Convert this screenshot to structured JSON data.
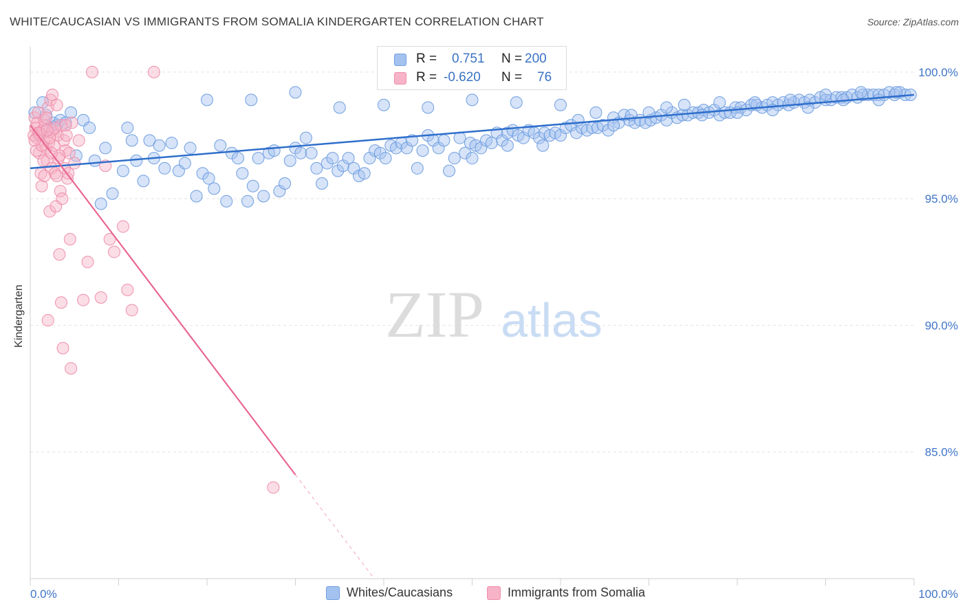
{
  "title": "WHITE/CAUCASIAN VS IMMIGRANTS FROM SOMALIA KINDERGARTEN CORRELATION CHART",
  "source": "Source: ZipAtlas.com",
  "watermark": {
    "zip": "ZIP",
    "atlas": "atlas"
  },
  "legend": {
    "r_label": "R =",
    "n_label": "N =",
    "series": [
      {
        "r": "0.751",
        "n": "200",
        "color": "#a4c2f0"
      },
      {
        "r": "-0.620",
        "n": "76",
        "color": "#f7b3c7"
      }
    ]
  },
  "bottom_legend": [
    "Whites/Caucasians",
    "Immigrants from Somalia"
  ],
  "colors": {
    "blue_fill": "#a4c2f0",
    "blue_stroke": "#6f9ee0",
    "blue_line": "#2e6ecb",
    "pink_fill": "#f7b3c7",
    "pink_stroke": "#ee8fab",
    "pink_line": "#e8668f",
    "axis_text": "#3f74c7",
    "grid": "#e2e2e2"
  },
  "chart_data": {
    "type": "scatter",
    "xlabel": "",
    "ylabel": "Kindergarten",
    "xlim": [
      0,
      100
    ],
    "ylim": [
      80,
      101
    ],
    "x_tick_labels": [
      "0.0%",
      "100.0%"
    ],
    "y_ticks": [
      85,
      90,
      95,
      100
    ],
    "y_tick_labels": [
      "85.0%",
      "90.0%",
      "95.0%",
      "100.0%"
    ],
    "grid": true,
    "series": [
      {
        "name": "Whites/Caucasians",
        "trend": {
          "x": [
            0,
            100
          ],
          "y": [
            96.2,
            99.1
          ]
        },
        "points": [
          [
            0.5,
            98.4
          ],
          [
            1.0,
            97.5
          ],
          [
            1.4,
            98.8
          ],
          [
            1.8,
            98.3
          ],
          [
            2.2,
            97.8
          ],
          [
            2.6,
            98.0
          ],
          [
            3.0,
            97.9
          ],
          [
            3.4,
            98.1
          ],
          [
            4.0,
            98.0
          ],
          [
            4.6,
            98.4
          ],
          [
            5.2,
            96.7
          ],
          [
            6.0,
            98.1
          ],
          [
            6.7,
            97.8
          ],
          [
            7.3,
            96.5
          ],
          [
            8.0,
            94.8
          ],
          [
            8.5,
            97.0
          ],
          [
            9.3,
            95.2
          ],
          [
            10.5,
            96.1
          ],
          [
            11.0,
            97.8
          ],
          [
            11.5,
            97.3
          ],
          [
            12.0,
            96.5
          ],
          [
            12.8,
            95.7
          ],
          [
            13.5,
            97.3
          ],
          [
            14.0,
            96.6
          ],
          [
            14.6,
            97.1
          ],
          [
            15.2,
            96.2
          ],
          [
            16.0,
            97.2
          ],
          [
            16.8,
            96.1
          ],
          [
            17.5,
            96.4
          ],
          [
            18.1,
            97.0
          ],
          [
            18.8,
            95.1
          ],
          [
            19.5,
            96.0
          ],
          [
            20.2,
            95.8
          ],
          [
            20.8,
            95.4
          ],
          [
            21.5,
            97.1
          ],
          [
            22.2,
            94.9
          ],
          [
            22.8,
            96.8
          ],
          [
            23.5,
            96.6
          ],
          [
            24.0,
            96.0
          ],
          [
            24.6,
            94.9
          ],
          [
            25.2,
            95.5
          ],
          [
            25.8,
            96.6
          ],
          [
            26.4,
            95.1
          ],
          [
            27.0,
            96.8
          ],
          [
            27.6,
            96.9
          ],
          [
            28.2,
            95.3
          ],
          [
            28.8,
            95.6
          ],
          [
            29.4,
            96.5
          ],
          [
            30.0,
            97.0
          ],
          [
            30.6,
            96.8
          ],
          [
            31.2,
            97.4
          ],
          [
            31.8,
            96.8
          ],
          [
            32.4,
            96.2
          ],
          [
            33.0,
            95.6
          ],
          [
            33.6,
            96.4
          ],
          [
            34.2,
            96.6
          ],
          [
            34.8,
            96.1
          ],
          [
            35.4,
            96.3
          ],
          [
            36.0,
            96.6
          ],
          [
            36.6,
            96.2
          ],
          [
            37.2,
            95.9
          ],
          [
            37.8,
            96.0
          ],
          [
            38.4,
            96.6
          ],
          [
            39.0,
            96.9
          ],
          [
            39.6,
            96.8
          ],
          [
            40.2,
            96.6
          ],
          [
            40.8,
            97.1
          ],
          [
            41.4,
            97.0
          ],
          [
            42.0,
            97.2
          ],
          [
            42.6,
            97.0
          ],
          [
            43.2,
            97.3
          ],
          [
            43.8,
            96.2
          ],
          [
            44.4,
            96.9
          ],
          [
            45.0,
            97.5
          ],
          [
            45.6,
            97.3
          ],
          [
            46.2,
            97.0
          ],
          [
            46.8,
            97.3
          ],
          [
            47.4,
            96.1
          ],
          [
            48.0,
            96.6
          ],
          [
            48.6,
            97.4
          ],
          [
            49.2,
            96.8
          ],
          [
            49.8,
            97.2
          ],
          [
            50.4,
            97.1
          ],
          [
            51.0,
            97.0
          ],
          [
            51.6,
            97.3
          ],
          [
            52.2,
            97.2
          ],
          [
            52.8,
            97.6
          ],
          [
            53.4,
            97.3
          ],
          [
            54.0,
            97.6
          ],
          [
            54.6,
            97.7
          ],
          [
            55.2,
            97.5
          ],
          [
            55.8,
            97.4
          ],
          [
            56.4,
            97.7
          ],
          [
            57.0,
            97.6
          ],
          [
            57.6,
            97.4
          ],
          [
            58.2,
            97.6
          ],
          [
            58.8,
            97.5
          ],
          [
            59.4,
            97.6
          ],
          [
            60.0,
            97.5
          ],
          [
            60.6,
            97.8
          ],
          [
            61.2,
            97.9
          ],
          [
            61.8,
            97.6
          ],
          [
            62.4,
            97.8
          ],
          [
            63.0,
            97.7
          ],
          [
            63.6,
            97.8
          ],
          [
            64.2,
            97.8
          ],
          [
            64.8,
            97.9
          ],
          [
            65.4,
            97.7
          ],
          [
            66.0,
            98.2
          ],
          [
            66.6,
            98.0
          ],
          [
            67.2,
            98.3
          ],
          [
            67.8,
            98.1
          ],
          [
            68.4,
            98.0
          ],
          [
            69.0,
            98.1
          ],
          [
            69.6,
            98.0
          ],
          [
            70.2,
            98.1
          ],
          [
            70.8,
            98.2
          ],
          [
            71.4,
            98.3
          ],
          [
            72.0,
            98.1
          ],
          [
            72.6,
            98.4
          ],
          [
            73.2,
            98.2
          ],
          [
            73.8,
            98.3
          ],
          [
            74.4,
            98.3
          ],
          [
            75.0,
            98.4
          ],
          [
            75.6,
            98.4
          ],
          [
            76.2,
            98.5
          ],
          [
            76.8,
            98.4
          ],
          [
            77.4,
            98.5
          ],
          [
            78.0,
            98.3
          ],
          [
            78.6,
            98.4
          ],
          [
            79.2,
            98.4
          ],
          [
            79.8,
            98.6
          ],
          [
            80.4,
            98.6
          ],
          [
            81.0,
            98.5
          ],
          [
            81.6,
            98.7
          ],
          [
            82.2,
            98.7
          ],
          [
            82.8,
            98.6
          ],
          [
            83.4,
            98.7
          ],
          [
            84.0,
            98.8
          ],
          [
            84.6,
            98.7
          ],
          [
            85.2,
            98.8
          ],
          [
            85.8,
            98.7
          ],
          [
            86.4,
            98.8
          ],
          [
            87.0,
            98.9
          ],
          [
            87.6,
            98.8
          ],
          [
            88.2,
            98.9
          ],
          [
            88.8,
            98.8
          ],
          [
            89.4,
            99.0
          ],
          [
            90.0,
            98.9
          ],
          [
            90.6,
            98.9
          ],
          [
            91.2,
            99.0
          ],
          [
            91.8,
            99.0
          ],
          [
            92.4,
            99.0
          ],
          [
            93.0,
            99.1
          ],
          [
            93.6,
            99.0
          ],
          [
            94.2,
            99.1
          ],
          [
            94.8,
            99.1
          ],
          [
            95.4,
            99.1
          ],
          [
            96.0,
            99.1
          ],
          [
            96.6,
            99.1
          ],
          [
            97.2,
            99.2
          ],
          [
            97.8,
            99.1
          ],
          [
            98.4,
            99.2
          ],
          [
            99.0,
            99.1
          ],
          [
            99.6,
            99.1
          ],
          [
            20.0,
            98.9
          ],
          [
            25.0,
            98.9
          ],
          [
            30.0,
            99.2
          ],
          [
            35.0,
            98.6
          ],
          [
            40.0,
            98.7
          ],
          [
            45.0,
            98.6
          ],
          [
            50.0,
            98.9
          ],
          [
            55.0,
            98.8
          ],
          [
            60.0,
            98.7
          ],
          [
            62.0,
            98.1
          ],
          [
            64.0,
            98.4
          ],
          [
            66.0,
            97.9
          ],
          [
            68.0,
            98.3
          ],
          [
            70.0,
            98.4
          ],
          [
            72.0,
            98.6
          ],
          [
            74.0,
            98.7
          ],
          [
            76.0,
            98.3
          ],
          [
            78.0,
            98.8
          ],
          [
            80.0,
            98.4
          ],
          [
            82.0,
            98.8
          ],
          [
            84.0,
            98.5
          ],
          [
            86.0,
            98.9
          ],
          [
            88.0,
            98.6
          ],
          [
            90.0,
            99.1
          ],
          [
            92.0,
            98.9
          ],
          [
            94.0,
            99.2
          ],
          [
            96.0,
            98.9
          ],
          [
            98.0,
            99.2
          ],
          [
            58.0,
            97.1
          ],
          [
            54.0,
            97.1
          ],
          [
            50.0,
            96.6
          ]
        ]
      },
      {
        "name": "Immigrants from Somalia",
        "trend": {
          "x": [
            0,
            30
          ],
          "y": [
            97.9,
            84.1
          ]
        },
        "points": [
          [
            0.5,
            98.2
          ],
          [
            0.6,
            97.8
          ],
          [
            0.7,
            97.4
          ],
          [
            0.8,
            98.0
          ],
          [
            0.9,
            97.6
          ],
          [
            1.0,
            96.8
          ],
          [
            1.1,
            97.5
          ],
          [
            1.2,
            96.0
          ],
          [
            1.3,
            95.5
          ],
          [
            1.4,
            97.7
          ],
          [
            1.5,
            97.3
          ],
          [
            1.6,
            98.1
          ],
          [
            1.7,
            97.9
          ],
          [
            1.8,
            97.0
          ],
          [
            1.9,
            96.5
          ],
          [
            2.0,
            98.6
          ],
          [
            2.1,
            97.2
          ],
          [
            2.2,
            94.5
          ],
          [
            2.3,
            98.9
          ],
          [
            2.4,
            96.2
          ],
          [
            2.5,
            99.1
          ],
          [
            2.6,
            97.6
          ],
          [
            2.7,
            97.1
          ],
          [
            2.8,
            96.0
          ],
          [
            2.9,
            94.7
          ],
          [
            3.0,
            98.7
          ],
          [
            3.1,
            97.5
          ],
          [
            3.2,
            96.6
          ],
          [
            3.3,
            92.8
          ],
          [
            3.4,
            95.3
          ],
          [
            3.5,
            90.9
          ],
          [
            3.6,
            95.0
          ],
          [
            3.7,
            89.1
          ],
          [
            3.8,
            97.3
          ],
          [
            3.9,
            96.2
          ],
          [
            4.0,
            96.9
          ],
          [
            4.1,
            97.5
          ],
          [
            4.2,
            95.8
          ],
          [
            4.3,
            96.0
          ],
          [
            4.4,
            96.8
          ],
          [
            4.5,
            93.4
          ],
          [
            4.6,
            88.3
          ],
          [
            4.7,
            98.0
          ],
          [
            5.0,
            96.4
          ],
          [
            5.5,
            97.3
          ],
          [
            6.0,
            91.0
          ],
          [
            6.5,
            92.5
          ],
          [
            7.0,
            100.0
          ],
          [
            8.0,
            91.1
          ],
          [
            8.5,
            96.3
          ],
          [
            9.0,
            93.4
          ],
          [
            9.5,
            92.9
          ],
          [
            10.5,
            93.9
          ],
          [
            11.0,
            91.4
          ],
          [
            11.5,
            90.6
          ],
          [
            14.0,
            100.0
          ],
          [
            27.5,
            83.6
          ],
          [
            0.4,
            97.5
          ],
          [
            0.9,
            98.4
          ],
          [
            1.5,
            96.5
          ],
          [
            2.0,
            90.2
          ],
          [
            2.5,
            97.7
          ],
          [
            3.0,
            95.9
          ],
          [
            3.5,
            97.9
          ],
          [
            4.0,
            97.9
          ],
          [
            1.0,
            97.6
          ],
          [
            1.8,
            98.2
          ],
          [
            2.2,
            97.4
          ],
          [
            2.8,
            97.8
          ],
          [
            3.3,
            96.7
          ],
          [
            0.7,
            96.9
          ],
          [
            1.3,
            97.1
          ],
          [
            1.9,
            97.7
          ],
          [
            2.4,
            96.8
          ],
          [
            0.5,
            97.3
          ],
          [
            1.6,
            95.9
          ]
        ]
      }
    ]
  }
}
